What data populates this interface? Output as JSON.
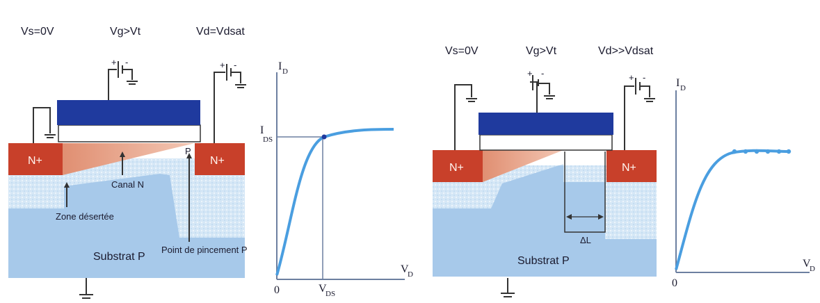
{
  "left": {
    "vs": "Vs=0V",
    "vg": "Vg>Vt",
    "vd": "Vd=Vdsat",
    "source": "N+",
    "drain": "N+",
    "pinch_mark": "P",
    "channel": "Canal N",
    "depletion": "Zone désertée",
    "substrate": "Substrat P",
    "pinch_point": "Point de pincement P",
    "plot": {
      "y_axis": "I",
      "y_sub": "D",
      "x_axis": "V",
      "x_sub": "D",
      "level_main": "I",
      "level_sub": "DS",
      "xtick_main": "V",
      "xtick_sub": "DS",
      "origin": "0"
    }
  },
  "right": {
    "vs": "Vs=0V",
    "vg": "Vg>Vt",
    "vd": "Vd>>Vdsat",
    "source": "N+",
    "drain": "N+",
    "delta": "ΔL",
    "substrate": "Substrat P",
    "plot": {
      "y_axis": "I",
      "y_sub": "D",
      "x_axis": "V",
      "x_sub": "D",
      "origin": "0"
    }
  },
  "colors": {
    "gate": "#1f3a9e",
    "nplus": "#c8402a",
    "substrate": "#a7c9ea",
    "depletion": "#d5e7f6",
    "channel": "#e59b7f",
    "curve": "#4a9ee0"
  }
}
